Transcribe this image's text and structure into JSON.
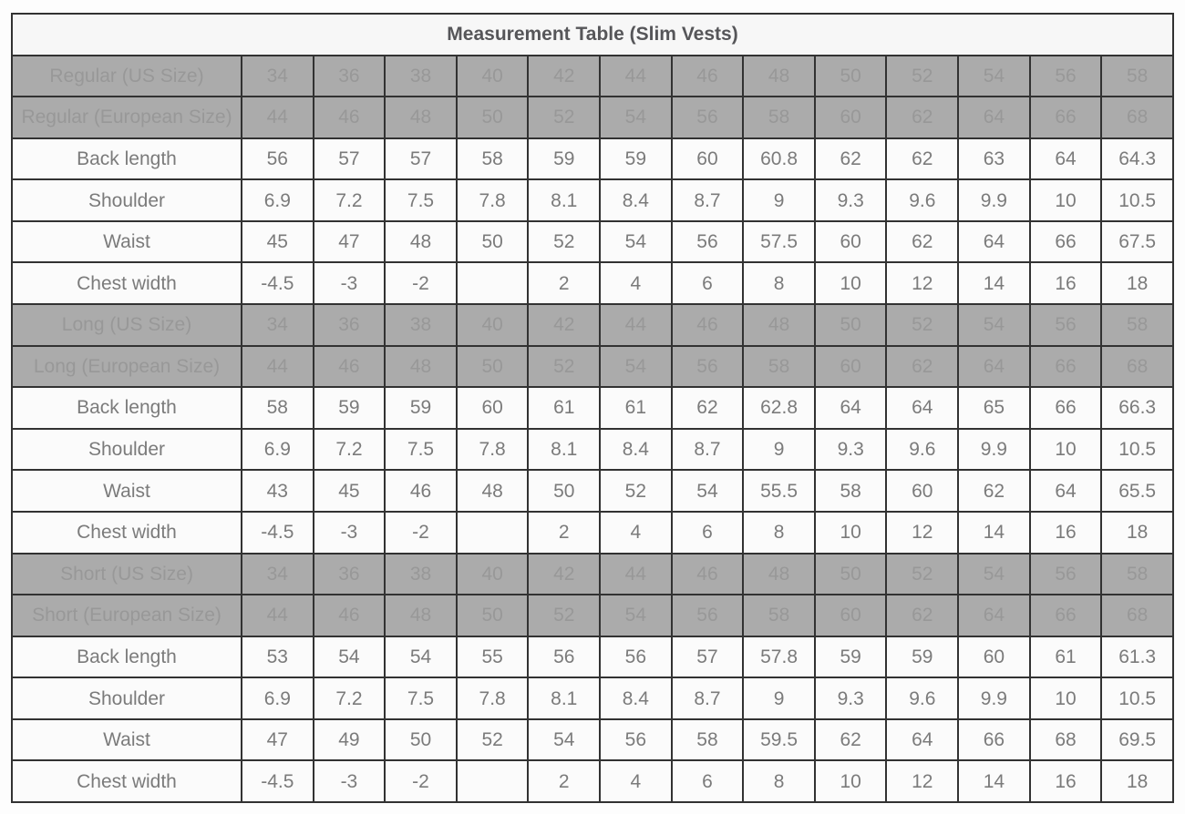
{
  "colors": {
    "page_bg": "#fdfdfd",
    "title_bg": "#f7f7f7",
    "title_text": "#565659",
    "header_bg": "#ababab",
    "header_text": "#989898",
    "row_bg": "#fbfbfb",
    "row_text": "#7b7b7b",
    "border": "#323232"
  },
  "chart_data": {
    "type": "table",
    "title": "Measurement Table (Slim Vests)",
    "num_value_columns": 13,
    "sections": [
      {
        "name": "Regular",
        "size_rows": [
          {
            "label": "Regular (US Size)",
            "values": [
              "34",
              "36",
              "38",
              "40",
              "42",
              "44",
              "46",
              "48",
              "50",
              "52",
              "54",
              "56",
              "58"
            ]
          },
          {
            "label": "Regular (European Size)",
            "values": [
              "44",
              "46",
              "48",
              "50",
              "52",
              "54",
              "56",
              "58",
              "60",
              "62",
              "64",
              "66",
              "68"
            ]
          }
        ],
        "measure_rows": [
          {
            "label": "Back length",
            "values": [
              "56",
              "57",
              "57",
              "58",
              "59",
              "59",
              "60",
              "60.8",
              "62",
              "62",
              "63",
              "64",
              "64.3"
            ]
          },
          {
            "label": "Shoulder",
            "values": [
              "6.9",
              "7.2",
              "7.5",
              "7.8",
              "8.1",
              "8.4",
              "8.7",
              "9",
              "9.3",
              "9.6",
              "9.9",
              "10",
              "10.5"
            ]
          },
          {
            "label": "Waist",
            "values": [
              "45",
              "47",
              "48",
              "50",
              "52",
              "54",
              "56",
              "57.5",
              "60",
              "62",
              "64",
              "66",
              "67.5"
            ]
          },
          {
            "label": "Chest width",
            "values": [
              "-4.5",
              "-3",
              "-2",
              "",
              "2",
              "4",
              "6",
              "8",
              "10",
              "12",
              "14",
              "16",
              "18"
            ]
          }
        ]
      },
      {
        "name": "Long",
        "size_rows": [
          {
            "label": "Long (US Size)",
            "values": [
              "34",
              "36",
              "38",
              "40",
              "42",
              "44",
              "46",
              "48",
              "50",
              "52",
              "54",
              "56",
              "58"
            ]
          },
          {
            "label": "Long (European Size)",
            "values": [
              "44",
              "46",
              "48",
              "50",
              "52",
              "54",
              "56",
              "58",
              "60",
              "62",
              "64",
              "66",
              "68"
            ]
          }
        ],
        "measure_rows": [
          {
            "label": "Back length",
            "values": [
              "58",
              "59",
              "59",
              "60",
              "61",
              "61",
              "62",
              "62.8",
              "64",
              "64",
              "65",
              "66",
              "66.3"
            ]
          },
          {
            "label": "Shoulder",
            "values": [
              "6.9",
              "7.2",
              "7.5",
              "7.8",
              "8.1",
              "8.4",
              "8.7",
              "9",
              "9.3",
              "9.6",
              "9.9",
              "10",
              "10.5"
            ]
          },
          {
            "label": "Waist",
            "values": [
              "43",
              "45",
              "46",
              "48",
              "50",
              "52",
              "54",
              "55.5",
              "58",
              "60",
              "62",
              "64",
              "65.5"
            ]
          },
          {
            "label": "Chest width",
            "values": [
              "-4.5",
              "-3",
              "-2",
              "",
              "2",
              "4",
              "6",
              "8",
              "10",
              "12",
              "14",
              "16",
              "18"
            ]
          }
        ]
      },
      {
        "name": "Short",
        "size_rows": [
          {
            "label": "Short (US Size)",
            "values": [
              "34",
              "36",
              "38",
              "40",
              "42",
              "44",
              "46",
              "48",
              "50",
              "52",
              "54",
              "56",
              "58"
            ]
          },
          {
            "label": "Short (European Size)",
            "values": [
              "44",
              "46",
              "48",
              "50",
              "52",
              "54",
              "56",
              "58",
              "60",
              "62",
              "64",
              "66",
              "68"
            ]
          }
        ],
        "measure_rows": [
          {
            "label": "Back length",
            "values": [
              "53",
              "54",
              "54",
              "55",
              "56",
              "56",
              "57",
              "57.8",
              "59",
              "59",
              "60",
              "61",
              "61.3"
            ]
          },
          {
            "label": "Shoulder",
            "values": [
              "6.9",
              "7.2",
              "7.5",
              "7.8",
              "8.1",
              "8.4",
              "8.7",
              "9",
              "9.3",
              "9.6",
              "9.9",
              "10",
              "10.5"
            ]
          },
          {
            "label": "Waist",
            "values": [
              "47",
              "49",
              "50",
              "52",
              "54",
              "56",
              "58",
              "59.5",
              "62",
              "64",
              "66",
              "68",
              "69.5"
            ]
          },
          {
            "label": "Chest width",
            "values": [
              "-4.5",
              "-3",
              "-2",
              "",
              "2",
              "4",
              "6",
              "8",
              "10",
              "12",
              "14",
              "16",
              "18"
            ]
          }
        ]
      }
    ]
  }
}
